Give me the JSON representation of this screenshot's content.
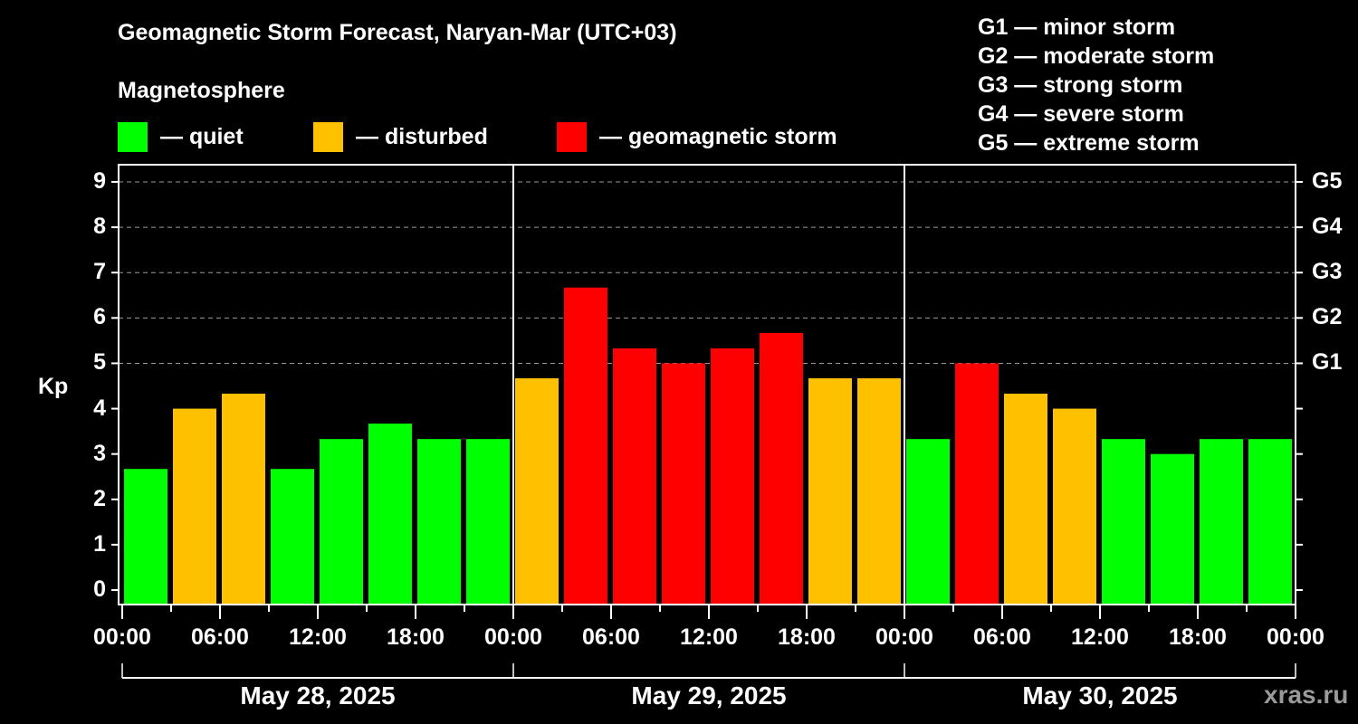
{
  "header": {
    "title": "Geomagnetic Storm Forecast, Naryan-Mar (UTC+03)",
    "subtitle": "Magnetosphere"
  },
  "legend": [
    {
      "label": "— quiet",
      "color": "#00ff00"
    },
    {
      "label": "— disturbed",
      "color": "#ffc000"
    },
    {
      "label": "— geomagnetic storm",
      "color": "#ff0000"
    }
  ],
  "g_scale": [
    "G1 — minor storm",
    "G2 — moderate storm",
    "G3 — strong storm",
    "G4 — severe storm",
    "G5 — extreme storm"
  ],
  "watermark": "xras.ru",
  "chart_data": {
    "type": "bar",
    "title": "Geomagnetic Storm Forecast, Naryan-Mar (UTC+03)",
    "xlabel": "",
    "ylabel": "Kp",
    "ylim": [
      0,
      9
    ],
    "yticks": [
      "0",
      "1",
      "2",
      "3",
      "4",
      "5",
      "6",
      "7",
      "8",
      "9"
    ],
    "right_axis_labels": [
      {
        "kp": 5,
        "label": "G1"
      },
      {
        "kp": 6,
        "label": "G2"
      },
      {
        "kp": 7,
        "label": "G3"
      },
      {
        "kp": 8,
        "label": "G4"
      },
      {
        "kp": 9,
        "label": "G5"
      }
    ],
    "grid": "dashed horizontal at Kp 5-9",
    "x_tick_labels": [
      "00:00",
      "06:00",
      "12:00",
      "18:00",
      "00:00",
      "06:00",
      "12:00",
      "18:00",
      "00:00",
      "06:00",
      "12:00",
      "18:00",
      "00:00"
    ],
    "dates": [
      "May 28, 2025",
      "May 29, 2025",
      "May 30, 2025"
    ],
    "categories": [
      "May 28 00-03",
      "May 28 03-06",
      "May 28 06-09",
      "May 28 09-12",
      "May 28 12-15",
      "May 28 15-18",
      "May 28 18-21",
      "May 28 21-24",
      "May 29 00-03",
      "May 29 03-06",
      "May 29 06-09",
      "May 29 09-12",
      "May 29 12-15",
      "May 29 15-18",
      "May 29 18-21",
      "May 29 21-24",
      "May 30 00-03",
      "May 30 03-06",
      "May 30 06-09",
      "May 30 09-12",
      "May 30 12-15",
      "May 30 15-18",
      "May 30 18-21",
      "May 30 21-24"
    ],
    "values": [
      2.67,
      4.0,
      4.33,
      2.67,
      3.33,
      3.67,
      3.33,
      3.33,
      4.67,
      6.67,
      5.33,
      5.0,
      5.33,
      5.67,
      4.67,
      4.67,
      3.33,
      5.0,
      4.33,
      4.0,
      3.33,
      3.0,
      3.33,
      3.33
    ],
    "status": [
      "quiet",
      "disturbed",
      "disturbed",
      "quiet",
      "quiet",
      "quiet",
      "quiet",
      "quiet",
      "disturbed",
      "storm",
      "storm",
      "storm",
      "storm",
      "storm",
      "disturbed",
      "disturbed",
      "quiet",
      "storm",
      "disturbed",
      "disturbed",
      "quiet",
      "quiet",
      "quiet",
      "quiet"
    ],
    "colors": {
      "quiet": "#00ff00",
      "disturbed": "#ffc000",
      "storm": "#ff0000"
    }
  }
}
